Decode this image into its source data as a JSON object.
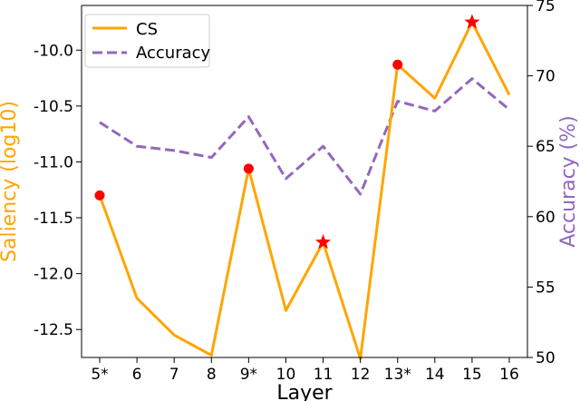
{
  "chart_data": {
    "type": "line",
    "title": "",
    "xlabel": "Layer",
    "ylabel_left": "Saliency (log10)",
    "ylabel_right": "Accuracy (%)",
    "categories": [
      "5*",
      "6",
      "7",
      "8",
      "9*",
      "10",
      "11",
      "12",
      "13*",
      "14",
      "15",
      "16"
    ],
    "ylim_left": [
      -12.75,
      -9.6
    ],
    "ylim_right": [
      50,
      75
    ],
    "yticks_left": [
      "-10.0",
      "-10.5",
      "-11.0",
      "-11.5",
      "-12.0",
      "-12.5"
    ],
    "yticks_left_values": [
      -10.0,
      -10.5,
      -11.0,
      -11.5,
      -12.0,
      -12.5
    ],
    "yticks_right": [
      "50",
      "55",
      "60",
      "65",
      "70",
      "75"
    ],
    "yticks_right_values": [
      50,
      55,
      60,
      65,
      70,
      75
    ],
    "series": [
      {
        "name": "CS",
        "axis": "left",
        "color": "#ffa500",
        "style": "solid",
        "values": [
          -11.3,
          -12.22,
          -12.55,
          -12.73,
          -11.06,
          -12.33,
          -11.72,
          -12.76,
          -10.13,
          -10.43,
          -9.75,
          -10.4
        ]
      },
      {
        "name": "Accuracy",
        "axis": "right",
        "color": "#9467bd",
        "style": "dashed",
        "values": [
          66.7,
          65.0,
          64.7,
          64.2,
          67.1,
          62.7,
          65.0,
          61.6,
          68.2,
          67.5,
          69.8,
          67.6
        ]
      }
    ],
    "markers": {
      "circles": [
        0,
        4,
        8
      ],
      "stars": [
        6,
        10
      ],
      "color": "#ff0000"
    },
    "legend": {
      "placement": "top-left",
      "entries": [
        "CS",
        "Accuracy"
      ]
    },
    "colors": {
      "left_axis_label": "#ffa500",
      "right_axis_label": "#9467bd"
    }
  }
}
